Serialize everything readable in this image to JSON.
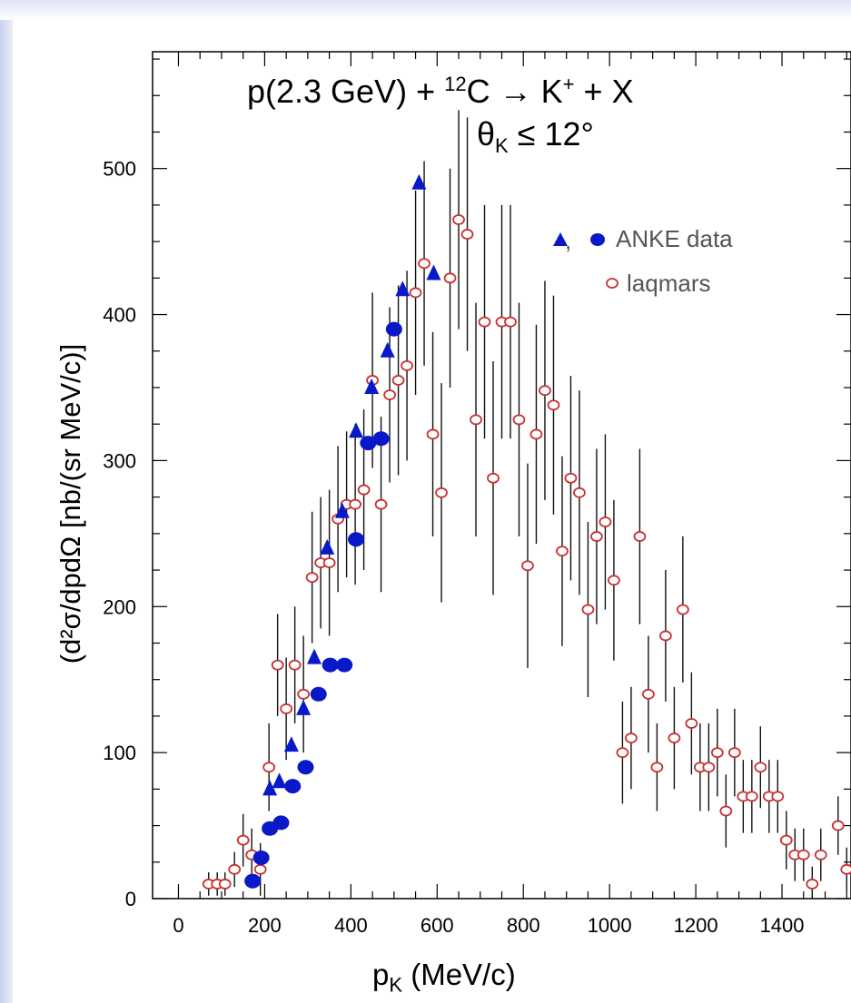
{
  "chart_data": {
    "type": "scatter",
    "title_line1_main": "p(2.3 GeV) + ",
    "title_line1_sup": "12",
    "title_line1_rest": "C → K",
    "title_line1_sup2": "+",
    "title_line1_end": " + X",
    "title_line2_main": "θ",
    "title_line2_sub": "K",
    "title_line2_end": " ≤ 12°",
    "xlabel_main": "p",
    "xlabel_sub": "K",
    "xlabel_end": " (MeV/c)",
    "ylabel": "(d²σ/dpdΩ [nb/(sr MeV/c)]",
    "xlim": [
      -60,
      1560
    ],
    "ylim": [
      0,
      580
    ],
    "xticks": [
      "0",
      "200",
      "400",
      "600",
      "800",
      "1000",
      "1200",
      "1400"
    ],
    "yticks": [
      "0",
      "100",
      "200",
      "300",
      "400",
      "500"
    ],
    "legend": {
      "anke_label": "ANKE data",
      "anke_sep": ",",
      "laqmars_label": "laqmars"
    },
    "series": [
      {
        "name": "ANKE data (triangles)",
        "marker": "triangle",
        "color": "#0a19c8",
        "points": [
          [
            212,
            75
          ],
          [
            234,
            80
          ],
          [
            262,
            105
          ],
          [
            290,
            130
          ],
          [
            315,
            165
          ],
          [
            345,
            240
          ],
          [
            380,
            265
          ],
          [
            412,
            320
          ],
          [
            448,
            350
          ],
          [
            485,
            375
          ],
          [
            520,
            417
          ],
          [
            558,
            490
          ],
          [
            592,
            428
          ]
        ]
      },
      {
        "name": "ANKE data (circles)",
        "marker": "circle",
        "color": "#0a19c8",
        "points": [
          [
            172,
            12
          ],
          [
            192,
            28
          ],
          [
            212,
            48
          ],
          [
            238,
            52
          ],
          [
            265,
            77
          ],
          [
            295,
            90
          ],
          [
            325,
            140
          ],
          [
            352,
            160
          ],
          [
            385,
            160
          ],
          [
            412,
            246
          ],
          [
            440,
            312
          ],
          [
            470,
            315
          ],
          [
            500,
            390
          ]
        ]
      },
      {
        "name": "laqmars",
        "marker": "open-circle",
        "color": "#c83232",
        "points": [
          [
            70,
            10,
            8
          ],
          [
            90,
            10,
            8
          ],
          [
            108,
            10,
            8
          ],
          [
            130,
            20,
            12
          ],
          [
            150,
            40,
            18
          ],
          [
            170,
            30,
            18
          ],
          [
            190,
            20,
            18
          ],
          [
            210,
            90,
            30
          ],
          [
            230,
            160,
            35
          ],
          [
            250,
            130,
            35
          ],
          [
            270,
            160,
            40
          ],
          [
            290,
            140,
            40
          ],
          [
            310,
            220,
            45
          ],
          [
            330,
            230,
            45
          ],
          [
            350,
            230,
            50
          ],
          [
            370,
            260,
            50
          ],
          [
            390,
            270,
            50
          ],
          [
            410,
            270,
            55
          ],
          [
            430,
            280,
            55
          ],
          [
            450,
            355,
            60
          ],
          [
            470,
            270,
            60
          ],
          [
            490,
            345,
            60
          ],
          [
            510,
            355,
            65
          ],
          [
            530,
            365,
            65
          ],
          [
            550,
            415,
            70
          ],
          [
            570,
            435,
            70
          ],
          [
            590,
            318,
            70
          ],
          [
            610,
            278,
            75
          ],
          [
            630,
            425,
            75
          ],
          [
            650,
            465,
            75
          ],
          [
            670,
            455,
            80
          ],
          [
            690,
            328,
            80
          ],
          [
            710,
            395,
            80
          ],
          [
            730,
            288,
            80
          ],
          [
            750,
            395,
            80
          ],
          [
            770,
            395,
            80
          ],
          [
            790,
            328,
            80
          ],
          [
            810,
            228,
            70
          ],
          [
            830,
            318,
            75
          ],
          [
            850,
            348,
            75
          ],
          [
            870,
            338,
            75
          ],
          [
            890,
            238,
            65
          ],
          [
            910,
            288,
            70
          ],
          [
            930,
            278,
            70
          ],
          [
            950,
            198,
            60
          ],
          [
            970,
            248,
            60
          ],
          [
            990,
            258,
            60
          ],
          [
            1010,
            218,
            55
          ],
          [
            1030,
            100,
            35
          ],
          [
            1050,
            110,
            35
          ],
          [
            1070,
            248,
            60
          ],
          [
            1090,
            140,
            40
          ],
          [
            1110,
            90,
            30
          ],
          [
            1130,
            180,
            45
          ],
          [
            1150,
            110,
            35
          ],
          [
            1170,
            198,
            50
          ],
          [
            1190,
            120,
            35
          ],
          [
            1210,
            90,
            30
          ],
          [
            1230,
            90,
            30
          ],
          [
            1250,
            100,
            30
          ],
          [
            1270,
            60,
            25
          ],
          [
            1290,
            100,
            30
          ],
          [
            1310,
            70,
            25
          ],
          [
            1330,
            70,
            25
          ],
          [
            1350,
            90,
            28
          ],
          [
            1370,
            70,
            25
          ],
          [
            1390,
            70,
            25
          ],
          [
            1410,
            40,
            20
          ],
          [
            1430,
            30,
            18
          ],
          [
            1450,
            30,
            18
          ],
          [
            1470,
            10,
            12
          ],
          [
            1490,
            30,
            18
          ],
          [
            1530,
            50,
            20
          ],
          [
            1550,
            20,
            15
          ]
        ]
      }
    ]
  }
}
